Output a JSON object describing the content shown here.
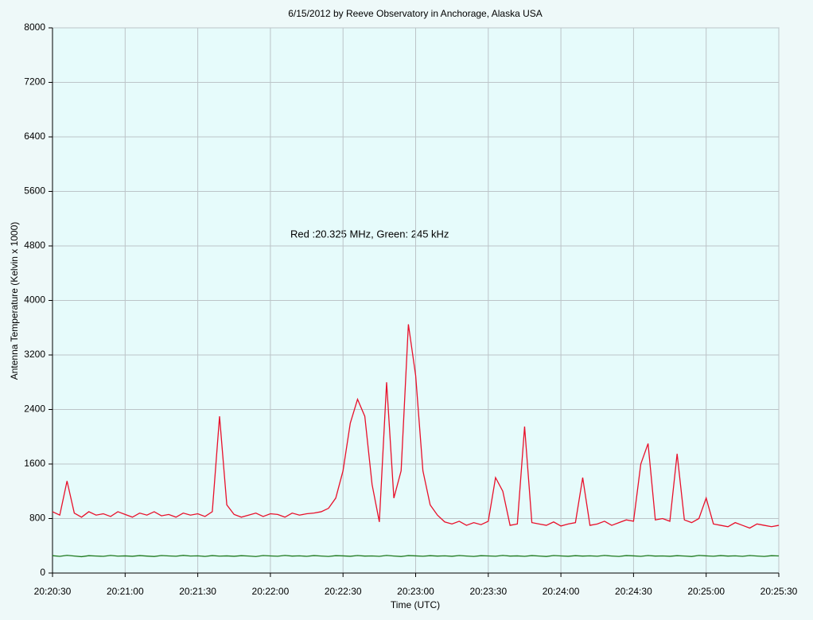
{
  "chart_data": {
    "type": "line",
    "title": "6/15/2012  by  Reeve Observatory  in  Anchorage, Alaska  USA",
    "xlabel": "Time (UTC)",
    "ylabel": "Antenna Temperature (Kelvin x 1000)",
    "annotation": "Red :20.325 MHz, Green: 245 kHz",
    "x": [
      "20:20:30",
      "20:20:33",
      "20:20:36",
      "20:20:39",
      "20:20:42",
      "20:20:45",
      "20:20:48",
      "20:20:51",
      "20:20:54",
      "20:20:57",
      "20:21:00",
      "20:21:03",
      "20:21:06",
      "20:21:09",
      "20:21:12",
      "20:21:15",
      "20:21:18",
      "20:21:21",
      "20:21:24",
      "20:21:27",
      "20:21:30",
      "20:21:33",
      "20:21:36",
      "20:21:39",
      "20:21:42",
      "20:21:45",
      "20:21:48",
      "20:21:51",
      "20:21:54",
      "20:21:57",
      "20:22:00",
      "20:22:03",
      "20:22:06",
      "20:22:09",
      "20:22:12",
      "20:22:15",
      "20:22:18",
      "20:22:21",
      "20:22:24",
      "20:22:27",
      "20:22:30",
      "20:22:33",
      "20:22:36",
      "20:22:39",
      "20:22:42",
      "20:22:45",
      "20:22:48",
      "20:22:51",
      "20:22:54",
      "20:22:57",
      "20:23:00",
      "20:23:03",
      "20:23:06",
      "20:23:09",
      "20:23:12",
      "20:23:15",
      "20:23:18",
      "20:23:21",
      "20:23:24",
      "20:23:27",
      "20:23:30",
      "20:23:33",
      "20:23:36",
      "20:23:39",
      "20:23:42",
      "20:23:45",
      "20:23:48",
      "20:23:51",
      "20:23:54",
      "20:23:57",
      "20:24:00",
      "20:24:03",
      "20:24:06",
      "20:24:09",
      "20:24:12",
      "20:24:15",
      "20:24:18",
      "20:24:21",
      "20:24:24",
      "20:24:27",
      "20:24:30",
      "20:24:33",
      "20:24:36",
      "20:24:39",
      "20:24:42",
      "20:24:45",
      "20:24:48",
      "20:24:51",
      "20:24:54",
      "20:24:57",
      "20:25:00",
      "20:25:03",
      "20:25:06",
      "20:25:09",
      "20:25:12",
      "20:25:15",
      "20:25:18",
      "20:25:21",
      "20:25:24",
      "20:25:27",
      "20:25:30"
    ],
    "series": [
      {
        "color": "#e8102a",
        "values": [
          900,
          850,
          1350,
          880,
          820,
          900,
          850,
          870,
          830,
          900,
          860,
          820,
          880,
          850,
          900,
          840,
          860,
          820,
          880,
          850,
          870,
          830,
          900,
          2300,
          1000,
          860,
          820,
          850,
          880,
          830,
          870,
          860,
          820,
          880,
          850,
          870,
          880,
          900,
          950,
          1100,
          1500,
          2200,
          2550,
          2300,
          1300,
          750,
          2800,
          1100,
          1500,
          3650,
          2900,
          1500,
          1000,
          850,
          750,
          720,
          760,
          700,
          740,
          710,
          760,
          1400,
          1200,
          700,
          720,
          2150,
          740,
          720,
          700,
          750,
          690,
          720,
          740,
          1400,
          700,
          720,
          760,
          700,
          740,
          780,
          760,
          1600,
          1900,
          780,
          800,
          760,
          1750,
          780,
          740,
          800,
          1100,
          720,
          700,
          680,
          740,
          700,
          660,
          720,
          700,
          680,
          700
        ]
      },
      {
        "color": "#1e7a1e",
        "values": [
          255,
          245,
          260,
          250,
          240,
          255,
          250,
          245,
          258,
          248,
          252,
          246,
          256,
          249,
          243,
          257,
          251,
          247,
          259,
          250,
          253,
          244,
          256,
          248,
          252,
          246,
          255,
          250,
          242,
          257,
          251,
          247,
          258,
          249,
          253,
          245,
          256,
          250,
          244,
          255,
          252,
          246,
          257,
          249,
          251,
          245,
          258,
          250,
          243,
          256,
          252,
          247,
          255,
          249,
          253,
          246,
          257,
          250,
          244,
          255,
          251,
          247,
          258,
          249,
          252,
          245,
          256,
          250,
          243,
          257,
          251,
          246,
          255,
          249,
          253,
          247,
          258,
          250,
          244,
          256,
          252,
          245,
          257,
          249,
          251,
          246,
          255,
          250,
          243,
          258,
          252,
          247,
          256,
          249,
          253,
          245,
          257,
          250,
          244,
          255,
          251
        ]
      }
    ],
    "xlim": [
      "20:20:30",
      "20:25:30"
    ],
    "xticks": [
      "20:20:30",
      "20:21:00",
      "20:21:30",
      "20:22:00",
      "20:22:30",
      "20:23:00",
      "20:23:30",
      "20:24:00",
      "20:24:30",
      "20:25:00",
      "20:25:30"
    ],
    "ylim": [
      0,
      8000
    ],
    "yticks": [
      0,
      800,
      1600,
      2400,
      3200,
      4000,
      4800,
      5600,
      6400,
      7200,
      8000
    ],
    "grid": true
  }
}
